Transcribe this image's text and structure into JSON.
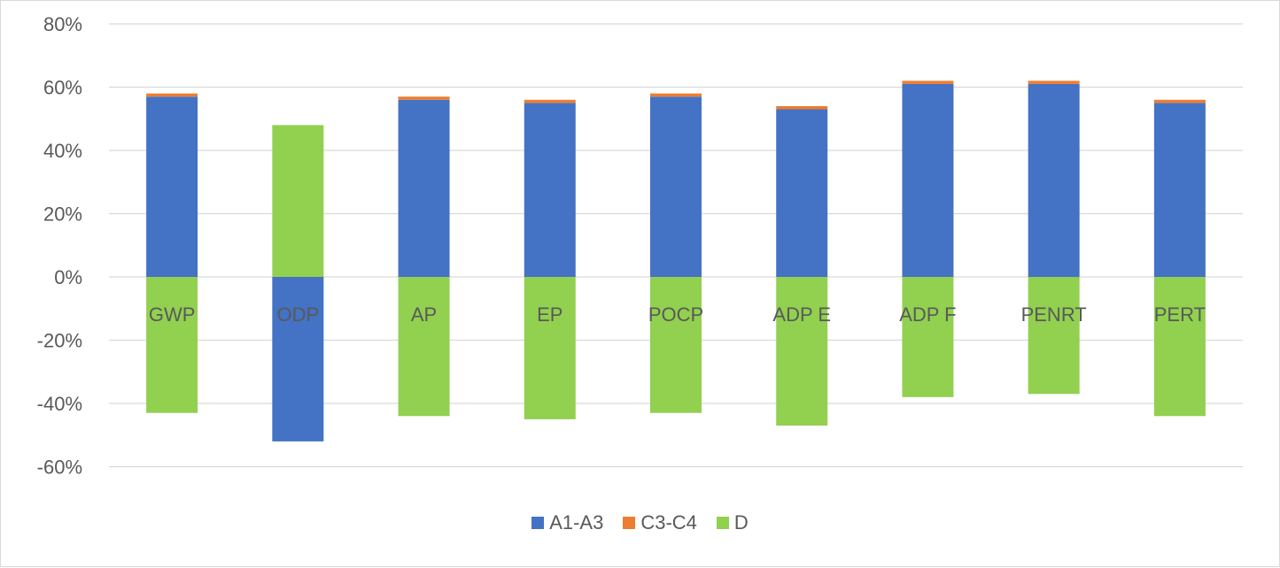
{
  "chart_data": {
    "type": "bar",
    "stacked": true,
    "title": "",
    "xlabel": "",
    "ylabel": "",
    "ylim": [
      -60,
      80
    ],
    "yticks": [
      "80%",
      "60%",
      "40%",
      "20%",
      "0%",
      "-20%",
      "-40%",
      "-60%"
    ],
    "ytick_values": [
      80,
      60,
      40,
      20,
      0,
      -20,
      -40,
      -60
    ],
    "grid": true,
    "legend_position": "bottom",
    "categories": [
      "GWP",
      "ODP",
      "AP",
      "EP",
      "POCP",
      "ADP E",
      "ADP F",
      "PENRT",
      "PERT"
    ],
    "series": [
      {
        "name": "A1-A3",
        "color": "#4472c4",
        "values": [
          57,
          -52,
          56,
          55,
          57,
          53,
          61,
          61,
          55
        ]
      },
      {
        "name": "C3-C4",
        "color": "#ed7d31",
        "values": [
          1,
          0,
          1,
          1,
          1,
          1,
          1,
          1,
          1
        ]
      },
      {
        "name": "D",
        "color": "#92d050",
        "values": [
          -43,
          48,
          -44,
          -45,
          -43,
          -47,
          -38,
          -37,
          -44
        ]
      }
    ]
  }
}
